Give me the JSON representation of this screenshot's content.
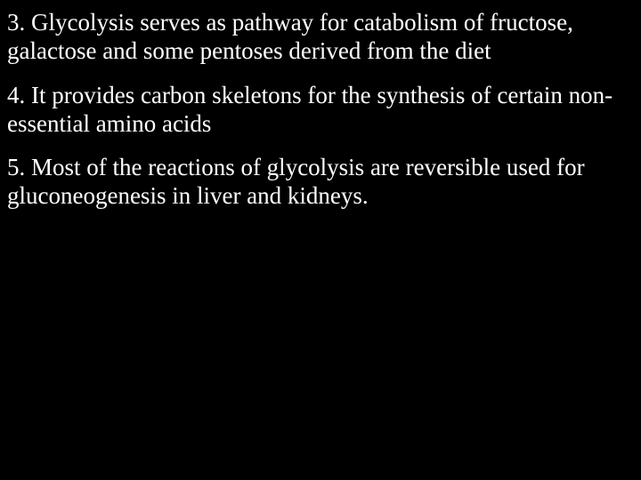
{
  "background_color": "#000000",
  "text_color": "#ffffff",
  "font_family": "Times New Roman",
  "font_size_pt": 20,
  "paragraphs": [
    {
      "text": "3. Glycolysis serves as pathway for catabolism of fructose, galactose and some pentoses derived from the diet"
    },
    {
      "text": "4.  It provides carbon skeletons for the synthesis of certain non-essential amino acids"
    },
    {
      "text": "5. Most of the reactions of glycolysis are reversible used for gluconeogenesis in liver and kidneys."
    }
  ]
}
